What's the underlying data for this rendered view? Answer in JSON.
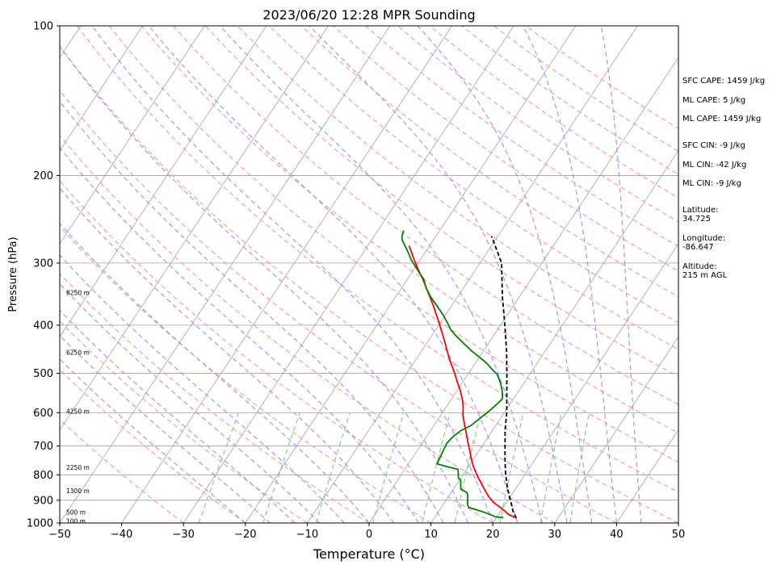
{
  "chart_data": {
    "type": "line",
    "title": "2023/06/20 12:28 MPR Sounding",
    "xlabel": "Temperature (°C)",
    "ylabel": "Pressure (hPa)",
    "xlim": [
      -50,
      50
    ],
    "ylim": [
      1000,
      100
    ],
    "y_scale": "log",
    "x_ticks": [
      "−50",
      "−40",
      "−30",
      "−20",
      "−10",
      "0",
      "10",
      "20",
      "30",
      "40",
      "50"
    ],
    "y_ticks": [
      "100",
      "200",
      "300",
      "400",
      "500",
      "600",
      "700",
      "800",
      "900",
      "1000"
    ],
    "height_labels": [
      {
        "label": "100 m",
        "p": 995
      },
      {
        "label": "500 m",
        "p": 955
      },
      {
        "label": "1300 m",
        "p": 865
      },
      {
        "label": "2250 m",
        "p": 775
      },
      {
        "label": "4250 m",
        "p": 598
      },
      {
        "label": "6250 m",
        "p": 455
      },
      {
        "label": "8250 m",
        "p": 345
      }
    ],
    "series": [
      {
        "color": "#ff0000",
        "points": [
          [
            23.0,
            978
          ],
          [
            22.6,
            970
          ],
          [
            21.5,
            960
          ],
          [
            20.8,
            948
          ],
          [
            19.5,
            930
          ],
          [
            18.0,
            910
          ],
          [
            16.5,
            885
          ],
          [
            15.0,
            855
          ],
          [
            13.5,
            825
          ],
          [
            12.0,
            795
          ],
          [
            10.8,
            770
          ],
          [
            9.5,
            740
          ],
          [
            8.5,
            715
          ],
          [
            7.3,
            688
          ],
          [
            6.3,
            665
          ],
          [
            5.3,
            643
          ],
          [
            4.3,
            622
          ],
          [
            3.5,
            605
          ],
          [
            2.9,
            588
          ],
          [
            2.2,
            572
          ],
          [
            1.3,
            555
          ],
          [
            0.3,
            538
          ],
          [
            -0.8,
            522
          ],
          [
            -1.9,
            505
          ],
          [
            -3.1,
            488
          ],
          [
            -4.4,
            471
          ],
          [
            -5.7,
            453
          ],
          [
            -7.0,
            435
          ],
          [
            -8.5,
            416
          ],
          [
            -10.0,
            398
          ],
          [
            -11.6,
            380
          ],
          [
            -13.3,
            362
          ],
          [
            -15.2,
            344
          ],
          [
            -17.2,
            326
          ],
          [
            -19.3,
            309
          ],
          [
            -21.3,
            293
          ],
          [
            -23.3,
            277
          ]
        ]
      },
      {
        "color": "#008000",
        "points": [
          [
            21.1,
            975
          ],
          [
            19.8,
            972
          ],
          [
            18.7,
            962
          ],
          [
            17.5,
            952
          ],
          [
            15.8,
            940
          ],
          [
            14.4,
            930
          ],
          [
            14.0,
            920
          ],
          [
            13.6,
            905
          ],
          [
            13.0,
            880
          ],
          [
            12.5,
            868
          ],
          [
            11.2,
            855
          ],
          [
            10.7,
            838
          ],
          [
            10.2,
            820
          ],
          [
            9.6,
            812
          ],
          [
            9.1,
            795
          ],
          [
            8.6,
            780
          ],
          [
            6.5,
            770
          ],
          [
            4.6,
            760
          ],
          [
            4.4,
            735
          ],
          [
            4.2,
            715
          ],
          [
            4.0,
            690
          ],
          [
            4.3,
            670
          ],
          [
            4.9,
            652
          ],
          [
            6.0,
            637
          ],
          [
            6.7,
            615
          ],
          [
            7.4,
            595
          ],
          [
            7.9,
            577
          ],
          [
            8.2,
            563
          ],
          [
            7.9,
            555
          ],
          [
            7.2,
            540
          ],
          [
            6.4,
            526
          ],
          [
            5.6,
            514
          ],
          [
            4.7,
            502
          ],
          [
            3.3,
            490
          ],
          [
            1.7,
            476
          ],
          [
            -0.1,
            463
          ],
          [
            -2.0,
            450
          ],
          [
            -3.9,
            436
          ],
          [
            -5.8,
            422
          ],
          [
            -7.4,
            410
          ],
          [
            -8.6,
            398
          ],
          [
            -10.2,
            383
          ],
          [
            -12.2,
            367
          ],
          [
            -14.2,
            352
          ],
          [
            -16.0,
            337
          ],
          [
            -17.4,
            323
          ],
          [
            -18.3,
            317
          ],
          [
            -19.3,
            310
          ],
          [
            -21.4,
            296
          ],
          [
            -23.1,
            283
          ],
          [
            -25.0,
            270
          ],
          [
            -25.5,
            265
          ],
          [
            -25.8,
            258
          ]
        ]
      },
      {
        "color": "#000000",
        "dashed": true,
        "points": [
          [
            23.3,
            978
          ],
          [
            22.1,
            950
          ],
          [
            20.4,
            900
          ],
          [
            18.6,
            850
          ],
          [
            16.9,
            800
          ],
          [
            15.3,
            750
          ],
          [
            13.7,
            700
          ],
          [
            12.0,
            650
          ],
          [
            10.4,
            600
          ],
          [
            8.4,
            550
          ],
          [
            6.2,
            500
          ],
          [
            3.7,
            450
          ],
          [
            0.7,
            400
          ],
          [
            -2.8,
            350
          ],
          [
            -6.5,
            300
          ],
          [
            -11.0,
            265
          ]
        ]
      }
    ]
  },
  "side_panel": [
    "SFC CAPE: 1459 J/kg",
    "ML CAPE: 5 J/kg",
    "ML CAPE: 1459 J/kg",
    "SFC CIN: -9 J/kg",
    "ML CIN: -42 J/kg",
    "ML CIN: -9 J/kg",
    "Latitude:",
    "34.725",
    "Longitude:",
    "-86.647",
    "Altitude:",
    "215 m AGL"
  ],
  "colors": {
    "temperature": "#ff0000",
    "dewpoint": "#008000",
    "parcel": "#000000",
    "dry_adiabats": "#ff9999",
    "moist_adiabats": "#9999ff",
    "mixing_ratio": "#88cc88",
    "isotherms": "#a0a0a0",
    "isobars": "#a0a0a0"
  }
}
